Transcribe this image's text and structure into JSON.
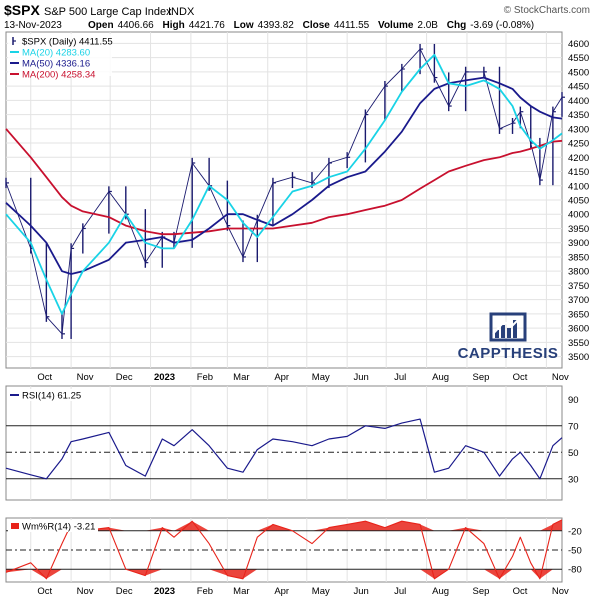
{
  "header": {
    "symbol": "$SPX",
    "name": "S&P 500 Large Cap Index",
    "exchange": "INDX",
    "copyright": "© StockCharts.com",
    "date": "13-Nov-2023",
    "open_label": "Open",
    "open": "4406.66",
    "high_label": "High",
    "high": "4421.76",
    "low_label": "Low",
    "low": "4393.82",
    "close_label": "Close",
    "close": "4411.55",
    "volume_label": "Volume",
    "volume": "2.0B",
    "chg_label": "Chg",
    "chg": "-3.69 (-0.08%)"
  },
  "legend": [
    {
      "text": "$SPX (Daily) 4411.55",
      "color": "#1a1a6e",
      "kind": "bar"
    },
    {
      "text": "MA(20) 4283.60",
      "color": "#19d3e6",
      "kind": "line"
    },
    {
      "text": "MA(50) 4336.16",
      "color": "#1a1a8c",
      "kind": "line"
    },
    {
      "text": "MA(200) 4258.34",
      "color": "#c8102e",
      "kind": "line"
    }
  ],
  "watermark": "CAPPTHESIS",
  "colors": {
    "price": "#1a1a6e",
    "ma20": "#19d3e6",
    "ma50": "#1a1a8c",
    "ma200": "#c8102e",
    "rsi": "#1a1a8c",
    "wpr": "#e8231a",
    "grid": "#e3e3e3",
    "watermark": "#28407a"
  },
  "chart_data": [
    {
      "type": "line",
      "title": "$SPX (Daily) 4411.55",
      "xlabel": "",
      "ylabel": "",
      "ylim": [
        3460,
        4640
      ],
      "y_ticks": [
        3500,
        3550,
        3600,
        3650,
        3700,
        3750,
        3800,
        3850,
        3900,
        3950,
        4000,
        4050,
        4100,
        4150,
        4200,
        4250,
        4300,
        4350,
        4400,
        4450,
        4500,
        4550,
        4600
      ],
      "x_axis_labels": [
        "Oct",
        "Nov",
        "Dec",
        "2023",
        "Feb",
        "Mar",
        "Apr",
        "May",
        "Jun",
        "Jul",
        "Aug",
        "Sep",
        "Oct",
        "Nov"
      ],
      "x": [
        "2022-09-12",
        "2022-10-01",
        "2022-10-13",
        "2022-10-25",
        "2022-11-01",
        "2022-11-10",
        "2022-11-30",
        "2022-12-13",
        "2022-12-28",
        "2023-01-10",
        "2023-01-19",
        "2023-02-02",
        "2023-02-15",
        "2023-03-01",
        "2023-03-13",
        "2023-03-24",
        "2023-04-05",
        "2023-04-20",
        "2023-05-05",
        "2023-05-18",
        "2023-06-01",
        "2023-06-15",
        "2023-06-30",
        "2023-07-13",
        "2023-07-27",
        "2023-08-07",
        "2023-08-18",
        "2023-08-31",
        "2023-09-14",
        "2023-09-26",
        "2023-10-06",
        "2023-10-12",
        "2023-10-20",
        "2023-10-27",
        "2023-11-06",
        "2023-11-13"
      ],
      "series": [
        {
          "name": "$SPX (Daily) 4411.55",
          "values": [
            4110,
            3880,
            3640,
            3580,
            3880,
            3950,
            4080,
            4000,
            3830,
            3920,
            3900,
            4180,
            4100,
            3960,
            3850,
            3980,
            4110,
            4130,
            4110,
            4180,
            4200,
            4350,
            4450,
            4510,
            4580,
            4480,
            4380,
            4500,
            4500,
            4300,
            4320,
            4360,
            4250,
            4120,
            4360,
            4411
          ]
        },
        {
          "name": "MA(20) 4283.60",
          "values": [
            4000,
            3900,
            3770,
            3650,
            3720,
            3800,
            3900,
            4000,
            3900,
            3880,
            3880,
            3980,
            4100,
            4050,
            3970,
            3920,
            3990,
            4080,
            4100,
            4130,
            4150,
            4230,
            4330,
            4430,
            4510,
            4560,
            4460,
            4450,
            4470,
            4440,
            4380,
            4310,
            4260,
            4230,
            4260,
            4284
          ]
        },
        {
          "name": "MA(50) 4336.16",
          "values": [
            4040,
            3960,
            3900,
            3800,
            3790,
            3800,
            3840,
            3900,
            3910,
            3920,
            3900,
            3910,
            3950,
            4000,
            4000,
            3980,
            3960,
            4000,
            4050,
            4100,
            4130,
            4150,
            4220,
            4290,
            4390,
            4440,
            4460,
            4470,
            4480,
            4460,
            4440,
            4410,
            4380,
            4360,
            4340,
            4336
          ]
        },
        {
          "name": "MA(200) 4258.34",
          "values": [
            4300,
            4200,
            4130,
            4060,
            4030,
            4010,
            3990,
            3960,
            3940,
            3930,
            3930,
            3935,
            3940,
            3950,
            3950,
            3950,
            3950,
            3960,
            3970,
            3990,
            4000,
            4015,
            4030,
            4050,
            4090,
            4120,
            4150,
            4170,
            4190,
            4200,
            4215,
            4220,
            4230,
            4240,
            4255,
            4258
          ]
        }
      ]
    },
    {
      "type": "line",
      "title": "RSI(14) 61.25",
      "ylim": [
        14,
        100
      ],
      "y_ticks": [
        30,
        50,
        70,
        90
      ],
      "reference_lines": [
        30,
        50,
        70
      ],
      "x_axis_labels": [],
      "x": [
        "2022-09-12",
        "2022-10-01",
        "2022-10-13",
        "2022-10-25",
        "2022-11-01",
        "2022-11-10",
        "2022-11-30",
        "2022-12-13",
        "2022-12-28",
        "2023-01-10",
        "2023-01-19",
        "2023-02-02",
        "2023-02-15",
        "2023-03-01",
        "2023-03-13",
        "2023-03-24",
        "2023-04-05",
        "2023-04-20",
        "2023-05-05",
        "2023-05-18",
        "2023-06-01",
        "2023-06-15",
        "2023-06-30",
        "2023-07-13",
        "2023-07-27",
        "2023-08-07",
        "2023-08-18",
        "2023-08-31",
        "2023-09-14",
        "2023-09-26",
        "2023-10-06",
        "2023-10-12",
        "2023-10-20",
        "2023-10-27",
        "2023-11-06",
        "2023-11-13"
      ],
      "series": [
        {
          "name": "RSI(14) 61.25",
          "values": [
            38,
            33,
            30,
            45,
            58,
            60,
            65,
            40,
            32,
            60,
            55,
            67,
            55,
            38,
            35,
            52,
            60,
            58,
            55,
            60,
            62,
            70,
            68,
            72,
            75,
            35,
            38,
            55,
            50,
            32,
            45,
            50,
            40,
            30,
            55,
            61
          ]
        }
      ]
    },
    {
      "type": "area",
      "title": "Wm%R(14) -3.21",
      "ylim": [
        -100,
        0
      ],
      "y_ticks": [
        -20,
        -50,
        -80
      ],
      "reference_lines": [
        -20,
        -50,
        -80
      ],
      "x_axis_labels": [
        "Oct",
        "Nov",
        "Dec",
        "2023",
        "Feb",
        "Mar",
        "Apr",
        "May",
        "Jun",
        "Jul",
        "Aug",
        "Sep",
        "Oct",
        "Nov"
      ],
      "x": [
        "2022-09-12",
        "2022-10-01",
        "2022-10-13",
        "2022-10-25",
        "2022-11-01",
        "2022-11-10",
        "2022-11-30",
        "2022-12-13",
        "2022-12-28",
        "2023-01-10",
        "2023-01-19",
        "2023-02-02",
        "2023-02-15",
        "2023-03-01",
        "2023-03-13",
        "2023-03-24",
        "2023-04-05",
        "2023-04-20",
        "2023-05-05",
        "2023-05-18",
        "2023-06-01",
        "2023-06-15",
        "2023-06-30",
        "2023-07-13",
        "2023-07-27",
        "2023-08-07",
        "2023-08-18",
        "2023-08-31",
        "2023-09-14",
        "2023-09-26",
        "2023-10-06",
        "2023-10-12",
        "2023-10-20",
        "2023-10-27",
        "2023-11-06",
        "2023-11-13"
      ],
      "series": [
        {
          "name": "Wm%R(14) -3.21",
          "values": [
            -85,
            -70,
            -95,
            -40,
            -10,
            -20,
            -15,
            -80,
            -90,
            -15,
            -30,
            -5,
            -40,
            -90,
            -95,
            -30,
            -10,
            -20,
            -40,
            -15,
            -10,
            -5,
            -15,
            -5,
            -10,
            -95,
            -80,
            -15,
            -40,
            -95,
            -60,
            -30,
            -70,
            -95,
            -10,
            -3
          ]
        }
      ]
    }
  ]
}
